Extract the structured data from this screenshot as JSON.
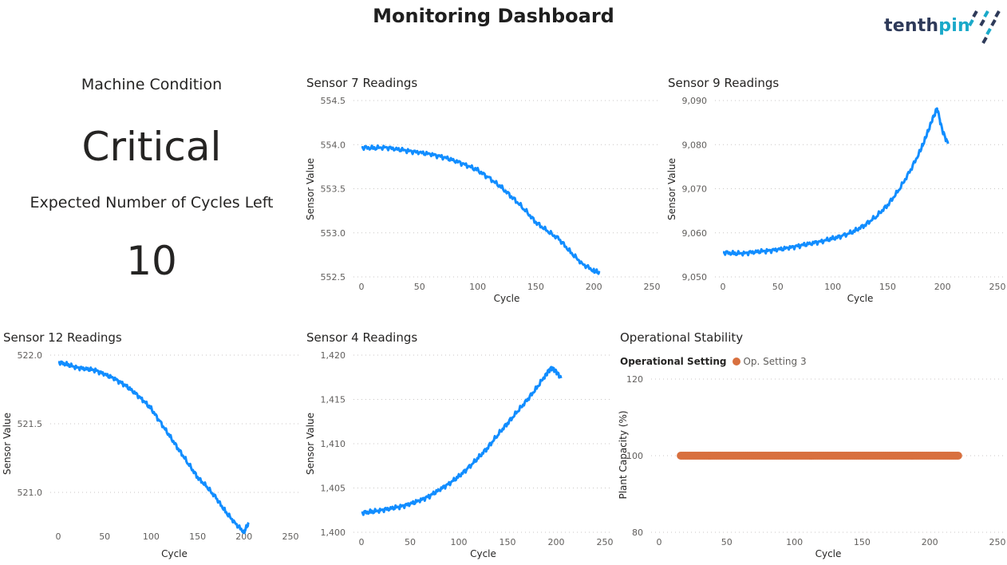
{
  "header": {
    "title": "Monitoring Dashboard"
  },
  "logo": {
    "text_main": "tenth",
    "text_highlight": "pin",
    "colors": {
      "main": "#2e3a59",
      "accent": "#1aa9c9"
    }
  },
  "kpi": {
    "condition_label": "Machine Condition",
    "condition_value": "Critical",
    "cycles_label": "Expected Number of Cycles Left",
    "cycles_value": "10"
  },
  "chart_data": [
    {
      "id": "s7",
      "type": "line",
      "title": "Sensor 7 Readings",
      "xlabel": "Cycle",
      "ylabel": "Sensor Value",
      "xlim": [
        0,
        250
      ],
      "ylim": [
        552.5,
        554.5
      ],
      "xticks": [
        0,
        50,
        100,
        150,
        200,
        250
      ],
      "yticks": [
        552.5,
        553.0,
        553.5,
        554.0,
        554.5
      ],
      "ytick_labels": [
        "552.5",
        "553.0",
        "553.5",
        "554.0",
        "554.5"
      ],
      "color": "#118dff",
      "x": [
        0,
        10,
        20,
        30,
        40,
        50,
        60,
        70,
        80,
        90,
        100,
        110,
        120,
        130,
        140,
        150,
        160,
        170,
        180,
        190,
        200,
        205
      ],
      "y": [
        553.97,
        553.96,
        553.97,
        553.95,
        553.93,
        553.91,
        553.89,
        553.86,
        553.82,
        553.77,
        553.71,
        553.62,
        553.52,
        553.4,
        553.27,
        553.12,
        553.02,
        552.93,
        552.78,
        552.65,
        552.57,
        552.55
      ]
    },
    {
      "id": "s9",
      "type": "line",
      "title": "Sensor 9 Readings",
      "xlabel": "Cycle",
      "ylabel": "Sensor Value",
      "xlim": [
        0,
        250
      ],
      "ylim": [
        9050,
        9090
      ],
      "xticks": [
        0,
        50,
        100,
        150,
        200,
        250
      ],
      "yticks": [
        9050,
        9060,
        9070,
        9080,
        9090
      ],
      "ytick_labels": [
        "9,050",
        "9,060",
        "9,070",
        "9,080",
        "9,090"
      ],
      "color": "#118dff",
      "x": [
        0,
        10,
        20,
        30,
        40,
        50,
        60,
        70,
        80,
        90,
        100,
        110,
        120,
        130,
        140,
        150,
        160,
        170,
        180,
        185,
        190,
        195,
        200,
        205
      ],
      "y": [
        9055.6,
        9055.3,
        9055.4,
        9055.7,
        9055.9,
        9056.2,
        9056.6,
        9057.1,
        9057.6,
        9058.1,
        9058.7,
        9059.4,
        9060.4,
        9061.9,
        9063.8,
        9066.3,
        9069.6,
        9073.8,
        9078.7,
        9081.8,
        9085.2,
        9088.3,
        9083.1,
        9080.2
      ]
    },
    {
      "id": "s12",
      "type": "line",
      "title": "Sensor 12 Readings",
      "xlabel": "Cycle",
      "ylabel": "Sensor Value",
      "xlim": [
        0,
        250
      ],
      "ylim": [
        520.75,
        522.0
      ],
      "xticks": [
        0,
        50,
        100,
        150,
        200,
        250
      ],
      "yticks": [
        521.0,
        521.5,
        522.0
      ],
      "ytick_labels": [
        "521.0",
        "521.5",
        "522.0"
      ],
      "color": "#118dff",
      "x": [
        0,
        10,
        20,
        30,
        40,
        50,
        60,
        70,
        80,
        90,
        100,
        110,
        120,
        130,
        140,
        150,
        160,
        170,
        180,
        190,
        200,
        205
      ],
      "y": [
        521.95,
        521.93,
        521.91,
        521.9,
        521.89,
        521.86,
        521.83,
        521.79,
        521.74,
        521.68,
        521.61,
        521.51,
        521.41,
        521.31,
        521.21,
        521.11,
        521.04,
        520.96,
        520.86,
        520.78,
        520.71,
        520.78
      ]
    },
    {
      "id": "s4",
      "type": "line",
      "title": "Sensor 4 Readings",
      "xlabel": "Cycle",
      "ylabel": "Sensor Value",
      "xlim": [
        0,
        250
      ],
      "ylim": [
        1400,
        1420
      ],
      "xticks": [
        0,
        50,
        100,
        150,
        200,
        250
      ],
      "yticks": [
        1400,
        1405,
        1410,
        1415,
        1420
      ],
      "ytick_labels": [
        "1,400",
        "1,405",
        "1,410",
        "1,415",
        "1,420"
      ],
      "color": "#118dff",
      "x": [
        0,
        10,
        20,
        30,
        40,
        50,
        60,
        70,
        80,
        90,
        100,
        110,
        120,
        130,
        140,
        150,
        160,
        170,
        180,
        190,
        195,
        200,
        205
      ],
      "y": [
        1402.2,
        1402.3,
        1402.5,
        1402.7,
        1402.9,
        1403.2,
        1403.6,
        1404.1,
        1404.8,
        1405.5,
        1406.3,
        1407.3,
        1408.4,
        1409.6,
        1411.0,
        1412.3,
        1413.6,
        1414.9,
        1416.3,
        1417.9,
        1418.6,
        1418.2,
        1417.4
      ]
    },
    {
      "id": "op",
      "type": "scatter",
      "title": "Operational Stability",
      "xlabel": "Cycle",
      "ylabel": "Plant Capacity (%)",
      "legend": {
        "title": "Operational Setting",
        "entries": [
          "Op. Setting 3"
        ]
      },
      "xlim": [
        0,
        250
      ],
      "ylim": [
        80,
        120
      ],
      "xticks": [
        0,
        50,
        100,
        150,
        200,
        250
      ],
      "yticks": [
        80,
        100,
        120
      ],
      "ytick_labels": [
        "80",
        "100",
        "120"
      ],
      "color": "#d8703f",
      "series": [
        {
          "name": "Op. Setting 3",
          "x_range": [
            16,
            221
          ],
          "y": 100
        }
      ]
    }
  ]
}
